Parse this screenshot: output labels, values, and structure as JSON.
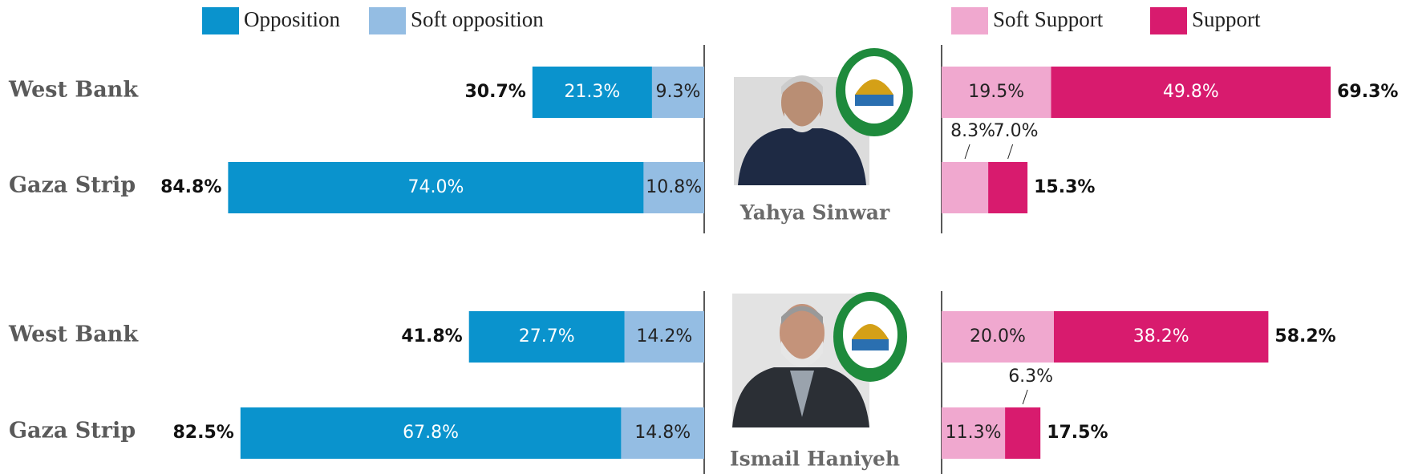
{
  "chart_data": {
    "type": "diverging_bar",
    "series": [
      {
        "name": "Opposition",
        "color": "#0a93cd",
        "side": "left"
      },
      {
        "name": "Soft opposition",
        "color": "#94bde3",
        "side": "left"
      },
      {
        "name": "Soft Support",
        "color": "#f0a8cf",
        "side": "right"
      },
      {
        "name": "Support",
        "color": "#d81b6e",
        "side": "right"
      }
    ],
    "panels": [
      {
        "title": "Yahya Sinwar",
        "categories": [
          "West Bank",
          "Gaza Strip"
        ],
        "values": [
          [
            21.3,
            74.0
          ],
          [
            9.3,
            10.8
          ],
          [
            19.5,
            8.3
          ],
          [
            49.8,
            7.0
          ]
        ],
        "value_labels": [
          [
            "21.3%",
            "74.0%"
          ],
          [
            "9.3%",
            "10.8%"
          ],
          [
            "19.5%",
            "8.3%"
          ],
          [
            "49.8%",
            "7.0%"
          ]
        ],
        "left_totals": {
          "values": [
            30.7,
            84.8
          ],
          "value_labels": [
            "30.7%",
            "84.8%"
          ]
        },
        "right_totals": {
          "values": [
            69.3,
            15.3
          ],
          "value_labels": [
            "69.3%",
            "15.3%"
          ]
        }
      },
      {
        "title": "Ismail Haniyeh",
        "categories": [
          "West Bank",
          "Gaza Strip"
        ],
        "values": [
          [
            27.7,
            67.8
          ],
          [
            14.2,
            14.8
          ],
          [
            20.0,
            11.3
          ],
          [
            38.2,
            6.3
          ]
        ],
        "value_labels": [
          [
            "27.7%",
            "67.8%"
          ],
          [
            "14.2%",
            "14.8%"
          ],
          [
            "20.0%",
            "11.3%"
          ],
          [
            "38.2%",
            "6.3%"
          ]
        ],
        "left_totals": {
          "values": [
            41.8,
            82.5
          ],
          "value_labels": [
            "41.8%",
            "82.5%"
          ]
        },
        "right_totals": {
          "values": [
            58.2,
            17.5
          ],
          "value_labels": [
            "58.2%",
            "17.5%"
          ]
        }
      }
    ]
  }
}
